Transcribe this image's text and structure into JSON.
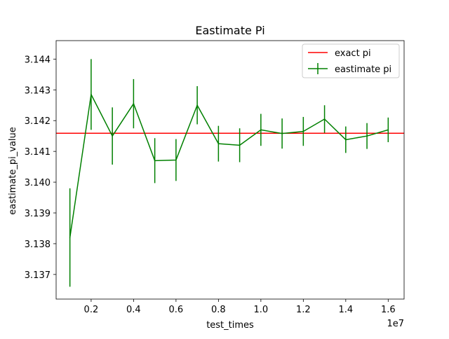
{
  "chart_data": {
    "type": "line",
    "title": "Eastimate Pi",
    "xlabel": "test_times",
    "ylabel": "eastimate_pi_value",
    "x_offset_label": "1e7",
    "xlim": [
      0.035,
      1.675
    ],
    "ylim": [
      3.1362,
      3.1446
    ],
    "x_ticks": [
      0.2,
      0.4,
      0.6,
      0.8,
      1.0,
      1.2,
      1.4,
      1.6
    ],
    "x_tick_labels": [
      "0.2",
      "0.4",
      "0.6",
      "0.8",
      "1.0",
      "1.2",
      "1.4",
      "1.6"
    ],
    "y_ticks": [
      3.137,
      3.138,
      3.139,
      3.14,
      3.141,
      3.142,
      3.143,
      3.144
    ],
    "y_tick_labels": [
      "3.137",
      "3.138",
      "3.139",
      "3.140",
      "3.141",
      "3.142",
      "3.143",
      "3.144"
    ],
    "grid": false,
    "legend_position": "top-right",
    "series": [
      {
        "name": "exact pi",
        "kind": "hline",
        "color": "#ff0000",
        "y": 3.14159
      },
      {
        "name": "eastimate pi",
        "kind": "errorbar",
        "color": "#008000",
        "x": [
          0.1,
          0.2,
          0.3,
          0.4,
          0.5,
          0.6,
          0.7,
          0.8,
          0.9,
          1.0,
          1.1,
          1.2,
          1.3,
          1.4,
          1.5,
          1.6
        ],
        "y": [
          3.1382,
          3.14285,
          3.1415,
          3.14255,
          3.1407,
          3.14072,
          3.1425,
          3.14125,
          3.1412,
          3.1417,
          3.14158,
          3.14165,
          3.14205,
          3.14138,
          3.1415,
          3.1417
        ],
        "err": [
          0.0016,
          0.00115,
          0.00093,
          0.0008,
          0.00073,
          0.00068,
          0.00062,
          0.00058,
          0.00055,
          0.00052,
          0.00049,
          0.00047,
          0.00045,
          0.00043,
          0.00042,
          0.0004
        ]
      }
    ]
  }
}
